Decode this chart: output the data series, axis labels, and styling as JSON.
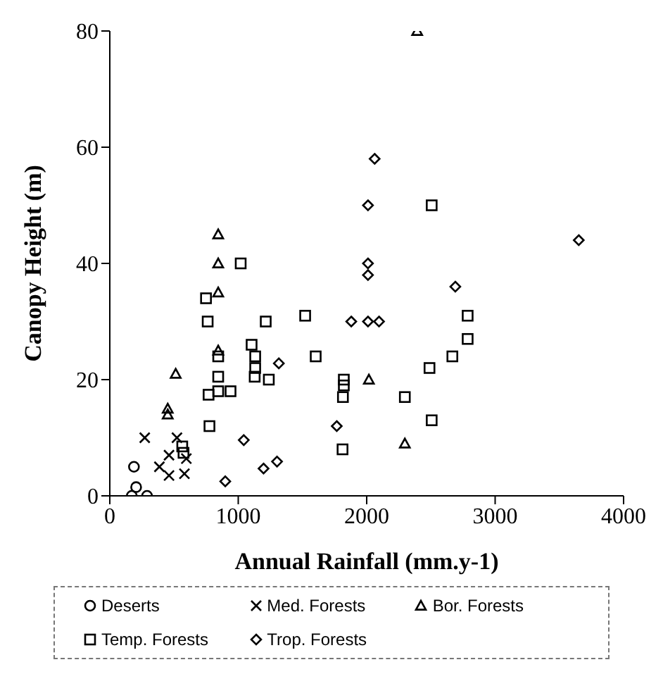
{
  "chart_data": {
    "type": "scatter",
    "xlabel": "Annual Rainfall (mm.y-1)",
    "ylabel": "Canopy Height (m)",
    "xlim": [
      0,
      4000
    ],
    "ylim": [
      0,
      80
    ],
    "xticks": [
      0,
      1000,
      2000,
      3000,
      4000
    ],
    "yticks": [
      0,
      20,
      40,
      60,
      80
    ],
    "grid": false,
    "legend": "bottom",
    "series": [
      {
        "name": "Deserts",
        "color": "#000000",
        "marker": "circle",
        "x": [
          188,
          205,
          171,
          290
        ],
        "values": [
          5,
          1.5,
          0,
          0
        ]
      },
      {
        "name": "Med. Forests",
        "color": "#000000",
        "marker": "cross",
        "x": [
          272,
          523,
          461,
          386,
          461,
          581,
          596
        ],
        "values": [
          10,
          10,
          7,
          5,
          3.5,
          3.8,
          6.4
        ]
      },
      {
        "name": "Bor. Forests",
        "color": "#000000",
        "marker": "triangle",
        "x": [
          451,
          451,
          513,
          844,
          844,
          844,
          844,
          2393,
          2017,
          2297
        ],
        "values": [
          14,
          15,
          21,
          45,
          40,
          35,
          25,
          80,
          20,
          9
        ]
      },
      {
        "name": "Temp. Forests",
        "color": "#000000",
        "marker": "square",
        "x": [
          564,
          574,
          769,
          844,
          940,
          844,
          1128,
          1238,
          776,
          1019,
          749,
          762,
          1214,
          1521,
          1104,
          1132,
          1132,
          1603,
          844,
          2506,
          2786,
          2786,
          2667,
          2489,
          2297,
          2506,
          1822,
          1822,
          1815,
          1812
        ],
        "values": [
          8.5,
          7.4,
          17.4,
          18,
          18,
          20.5,
          20.5,
          20,
          12,
          40,
          34,
          30,
          30,
          31,
          26,
          24,
          22,
          24,
          24,
          50,
          31,
          27,
          24,
          22,
          17,
          13,
          20,
          19,
          17,
          8
        ]
      },
      {
        "name": "Trop. Forests",
        "color": "#000000",
        "marker": "diamond",
        "x": [
          1043,
          899,
          1197,
          1302,
          1316,
          2062,
          2010,
          3651,
          2010,
          2010,
          2690,
          1880,
          2010,
          2096,
          1767
        ],
        "values": [
          9.6,
          2.5,
          4.7,
          5.9,
          22.8,
          58,
          50,
          44,
          40,
          38,
          36,
          30,
          30,
          30,
          12
        ]
      }
    ]
  }
}
